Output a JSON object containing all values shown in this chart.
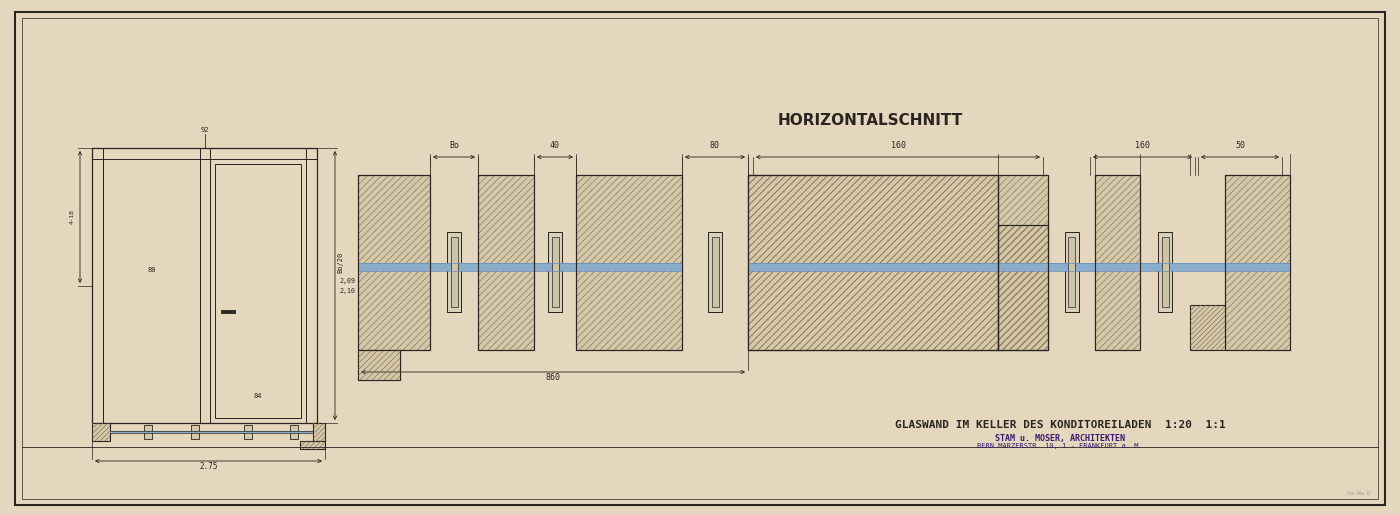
{
  "bg_color": "#e5d6be",
  "line_color": "#2a2520",
  "blue_color": "#8aadcc",
  "hatch_color": "#8a7050",
  "wall_face": "#d4c8aa",
  "title_text": "GLASWAND IM KELLER DES KONDITOREILADEN  1:20  1:1",
  "subtitle_line1": "STAM u. MOSER, ARCHITEKTEN",
  "subtitle_line2": "BERN MARZERSTR. 10, 1 - FRANKFURT a. M.",
  "schnitt_text": "HORIZONTALSCHNITT",
  "stamp_color": "#3a1870",
  "dim_texts_top": [
    "Bo",
    "40",
    "80",
    "160",
    "160",
    "50"
  ],
  "dim_text_bot": "860",
  "elev_dims": [
    "92",
    "4-18",
    "2,09\n2,10",
    "84",
    "80"
  ]
}
